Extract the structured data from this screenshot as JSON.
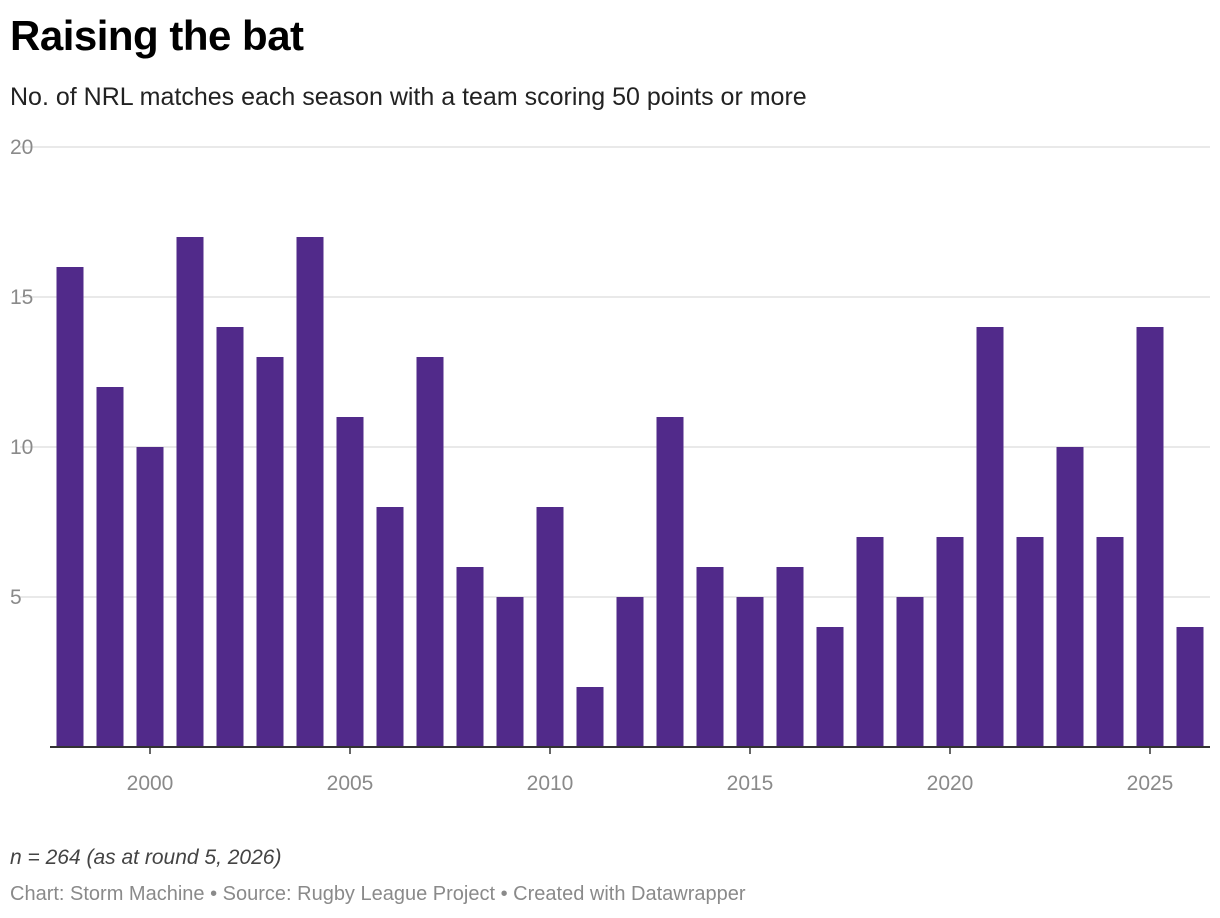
{
  "title": "Raising the bat",
  "subtitle": "No. of NRL matches each season with a team scoring 50 points or more",
  "notes": "n = 264 (as at round 5, 2026)",
  "footer": {
    "credit": "Chart: Storm Machine",
    "separator": " • ",
    "source": "Source: Rugby League Project",
    "tool": "Created with Datawrapper"
  },
  "colors": {
    "bar": "#512a8a",
    "grid": "#e2e2e2",
    "axis": "#333333",
    "tick_label": "#8a8a8a"
  },
  "chart_data": {
    "type": "bar",
    "title": "Raising the bat",
    "xlabel": "",
    "ylabel": "",
    "ylim": [
      0,
      20
    ],
    "yticks": [
      5,
      10,
      15,
      20
    ],
    "xticks": [
      2000,
      2005,
      2010,
      2015,
      2020,
      2025
    ],
    "grid": true,
    "legend": "none",
    "categories": [
      1998,
      1999,
      2000,
      2001,
      2002,
      2003,
      2004,
      2005,
      2006,
      2007,
      2008,
      2009,
      2010,
      2011,
      2012,
      2013,
      2014,
      2015,
      2016,
      2017,
      2018,
      2019,
      2020,
      2021,
      2022,
      2023,
      2024,
      2025,
      2026
    ],
    "values": [
      16,
      12,
      10,
      17,
      14,
      13,
      17,
      11,
      8,
      13,
      6,
      5,
      8,
      2,
      5,
      11,
      6,
      5,
      6,
      4,
      7,
      5,
      7,
      14,
      7,
      10,
      7,
      14,
      4
    ]
  }
}
